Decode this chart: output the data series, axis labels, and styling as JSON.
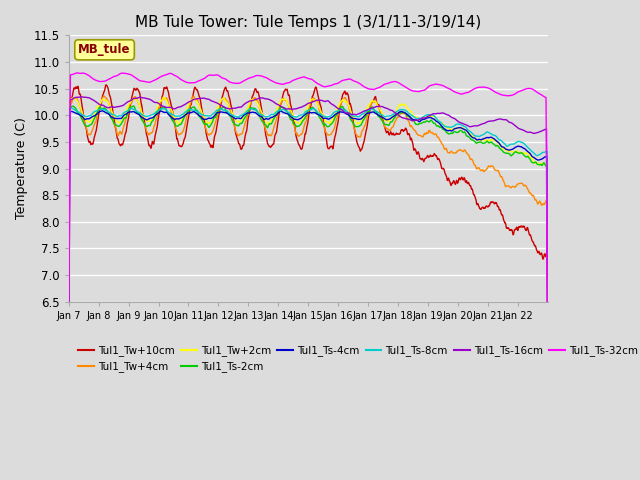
{
  "title": "MB Tule Tower: Tule Temps 1 (3/1/11-3/19/14)",
  "ylabel": "Temperature (C)",
  "ylim": [
    6.5,
    11.5
  ],
  "yticks": [
    6.5,
    7.0,
    7.5,
    8.0,
    8.5,
    9.0,
    9.5,
    10.0,
    10.5,
    11.0,
    11.5
  ],
  "plot_background": "#dcdcdc",
  "grid_color": "#ffffff",
  "series": [
    {
      "label": "Tul1_Tw+10cm",
      "color": "#cc0000",
      "lw": 1.0
    },
    {
      "label": "Tul1_Tw+4cm",
      "color": "#ff8800",
      "lw": 1.0
    },
    {
      "label": "Tul1_Tw+2cm",
      "color": "#ffff00",
      "lw": 1.0
    },
    {
      "label": "Tul1_Ts-2cm",
      "color": "#00cc00",
      "lw": 1.0
    },
    {
      "label": "Tul1_Ts-4cm",
      "color": "#0000cc",
      "lw": 1.0
    },
    {
      "label": "Tul1_Ts-8cm",
      "color": "#00cccc",
      "lw": 1.0
    },
    {
      "label": "Tul1_Ts-16cm",
      "color": "#9900cc",
      "lw": 1.0
    },
    {
      "label": "Tul1_Ts-32cm",
      "color": "#ff00ff",
      "lw": 1.0
    }
  ],
  "legend_box": {
    "text": "MB_tule",
    "facecolor": "#ffff99",
    "edgecolor": "#999900",
    "textcolor": "#880000"
  }
}
